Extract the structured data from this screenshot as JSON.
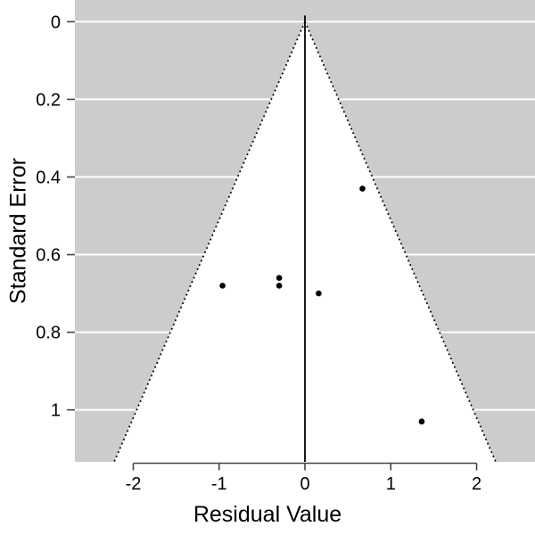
{
  "chart_data": {
    "type": "scatter",
    "subtype": "funnel_plot",
    "title": "",
    "xlabel": "Residual Value",
    "ylabel": "Standard Error",
    "legend": "none",
    "grid": true,
    "xlim": [
      -2.68,
      2.68
    ],
    "ylim_se": [
      -0.056,
      1.134
    ],
    "x_ticks": [
      {
        "value": -2,
        "label": "-2"
      },
      {
        "value": -1,
        "label": "-1"
      },
      {
        "value": 0,
        "label": "0"
      },
      {
        "value": 1,
        "label": "1"
      },
      {
        "value": 2,
        "label": "2"
      }
    ],
    "y_ticks": [
      {
        "value": 0,
        "label": "0"
      },
      {
        "value": 0.2,
        "label": "0.2"
      },
      {
        "value": 0.4,
        "label": "0.4"
      },
      {
        "value": 0.6,
        "label": "0.6"
      },
      {
        "value": 0.8,
        "label": "0.8"
      },
      {
        "value": 1,
        "label": "1"
      }
    ],
    "points": [
      {
        "x": 0.67,
        "se": 0.43
      },
      {
        "x": -0.96,
        "se": 0.68
      },
      {
        "x": -0.3,
        "se": 0.66
      },
      {
        "x": -0.3,
        "se": 0.68
      },
      {
        "x": 0.16,
        "se": 0.7
      },
      {
        "x": 1.36,
        "se": 1.03
      }
    ],
    "funnel": {
      "center_x": 0,
      "ci_multiplier": 1.96,
      "apex_se": 0
    },
    "colors": {
      "background": "#ffffff",
      "panel_bg": "#cccccc",
      "gridline": "#ffffff",
      "funnel_fill": "#ffffff",
      "funnel_edge": "#000000",
      "center_line": "#000000",
      "point": "#000000",
      "axis": "#444444",
      "text": "#000000"
    }
  }
}
